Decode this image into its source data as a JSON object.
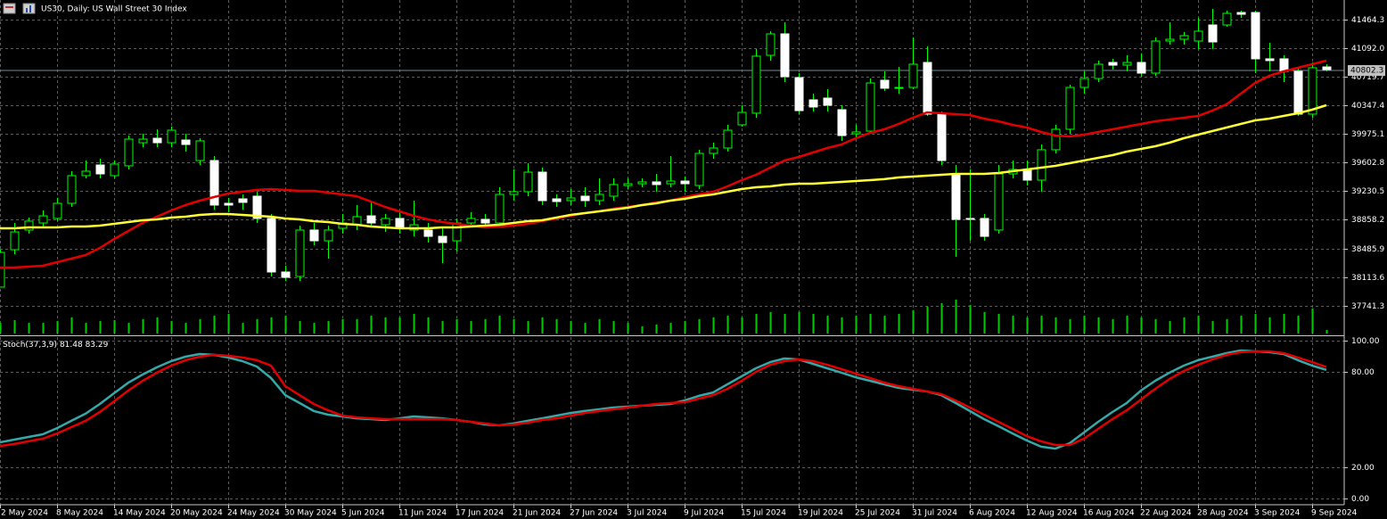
{
  "toolbar": {
    "title": "US30, Daily:  US Wall Street 30 Index"
  },
  "chart_data": [
    {
      "type": "candlestick",
      "categories": [
        "2 May 2024",
        null,
        null,
        null,
        "8 May 2024",
        null,
        null,
        null,
        "14 May 2024",
        null,
        null,
        null,
        "20 May 2024",
        null,
        null,
        null,
        "24 May 2024",
        null,
        null,
        null,
        "30 May 2024",
        null,
        null,
        null,
        "5 Jun 2024",
        null,
        null,
        null,
        "11 Jun 2024",
        null,
        null,
        null,
        "17 Jun 2024",
        null,
        null,
        null,
        "21 Jun 2024",
        null,
        null,
        null,
        "27 Jun 2024",
        null,
        null,
        null,
        "3 Jul 2024",
        null,
        null,
        null,
        "9 Jul 2024",
        null,
        null,
        null,
        "15 Jul 2024",
        null,
        null,
        null,
        "19 Jul 2024",
        null,
        null,
        null,
        "25 Jul 2024",
        null,
        null,
        null,
        "31 Jul 2024",
        null,
        null,
        null,
        "6 Aug 2024",
        null,
        null,
        null,
        "12 Aug 2024",
        null,
        null,
        null,
        "16 Aug 2024",
        null,
        null,
        null,
        "22 Aug 2024",
        null,
        null,
        null,
        "28 Aug 2024",
        null,
        null,
        null,
        "3 Sep 2024",
        null,
        null,
        null,
        "9 Sep 2024",
        null
      ],
      "open": [
        37982,
        38469,
        38725,
        38817,
        38876,
        39073,
        39433,
        39572,
        39433,
        39561,
        39862,
        39920,
        39862,
        39897,
        39630,
        39630,
        39073,
        39131,
        39166,
        38876,
        38179,
        38121,
        38725,
        38585,
        38748,
        38794,
        38910,
        38794,
        38876,
        38725,
        38725,
        38643,
        38585,
        38817,
        38864,
        38817,
        39189,
        39224,
        39479,
        39131,
        39108,
        39166,
        39108,
        39166,
        39305,
        39328,
        39352,
        39328,
        39363,
        39305,
        39723,
        39793,
        40095,
        40246,
        41000,
        41279,
        40710,
        40420,
        40443,
        40292,
        39978,
        40013,
        40675,
        40571,
        40582,
        40907,
        40234,
        39444,
        38876,
        38876,
        38725,
        39456,
        39514,
        39375,
        39770,
        40037,
        40582,
        40698,
        40907,
        40872,
        40907,
        40768,
        41186,
        41209,
        41186,
        41395,
        41395,
        41557,
        41557,
        40954,
        40954,
        40791,
        40234,
        40849
      ],
      "high": [
        38469,
        38817,
        38887,
        38980,
        39143,
        39491,
        39630,
        39653,
        39630,
        39955,
        39978,
        40037,
        40071,
        39978,
        39920,
        39688,
        39143,
        39189,
        39224,
        38934,
        38260,
        38783,
        38817,
        38783,
        38934,
        39050,
        39108,
        38934,
        38957,
        39108,
        38817,
        38759,
        38876,
        38957,
        38934,
        39282,
        39514,
        39595,
        39537,
        39189,
        39259,
        39282,
        39398,
        39398,
        39398,
        39398,
        39456,
        39688,
        39421,
        39770,
        39862,
        40095,
        40350,
        41081,
        41314,
        41430,
        40768,
        40501,
        40559,
        40350,
        40095,
        40698,
        40791,
        40849,
        41232,
        41116,
        40269,
        39572,
        39514,
        38934,
        39572,
        39630,
        39630,
        39839,
        40095,
        40617,
        40791,
        40931,
        40954,
        41000,
        41023,
        41232,
        41430,
        41302,
        41488,
        41604,
        41581,
        41581,
        41581,
        41163,
        41000,
        40849,
        40907,
        40884
      ],
      "low": [
        37982,
        38411,
        38678,
        38759,
        38841,
        39026,
        39398,
        39398,
        39398,
        39514,
        39804,
        39804,
        39804,
        39746,
        39572,
        38992,
        38957,
        38992,
        38817,
        38121,
        38063,
        38063,
        38527,
        38353,
        38678,
        38725,
        38759,
        38701,
        38678,
        38643,
        38562,
        38295,
        38446,
        38759,
        38759,
        38794,
        39108,
        39166,
        39050,
        39026,
        39050,
        39026,
        39050,
        39108,
        39259,
        39282,
        39224,
        39282,
        39224,
        39259,
        39653,
        39746,
        40071,
        40187,
        40931,
        40652,
        40234,
        40269,
        40269,
        39886,
        39920,
        39978,
        40536,
        40501,
        40559,
        40211,
        39572,
        38376,
        38585,
        38585,
        38678,
        39398,
        39305,
        39224,
        39723,
        39978,
        40501,
        40652,
        40814,
        40791,
        40722,
        40733,
        41139,
        41139,
        41081,
        41081,
        41372,
        41488,
        40768,
        40791,
        40652,
        40211,
        40187,
        40791
      ],
      "close": [
        38434,
        38701,
        38841,
        38910,
        39073,
        39433,
        39491,
        39456,
        39584,
        39909,
        39909,
        39862,
        40025,
        39839,
        39886,
        39050,
        39050,
        39085,
        38876,
        38179,
        38109,
        38725,
        38585,
        38725,
        38817,
        38899,
        38817,
        38876,
        38759,
        38794,
        38643,
        38562,
        38817,
        38876,
        38817,
        39189,
        39224,
        39479,
        39108,
        39096,
        39143,
        39108,
        39189,
        39317,
        39328,
        39352,
        39317,
        39363,
        39328,
        39723,
        39793,
        40025,
        40257,
        40989,
        41279,
        40722,
        40280,
        40327,
        40350,
        39955,
        40002,
        40640,
        40571,
        40582,
        40884,
        40234,
        39630,
        38864,
        38864,
        38643,
        39456,
        39514,
        39375,
        39770,
        40037,
        40582,
        40698,
        40884,
        40872,
        40907,
        40768,
        41186,
        41209,
        41256,
        41314,
        41174,
        41546,
        41534,
        40954,
        40931,
        40791,
        40234,
        40838,
        40814
      ],
      "bull_color": "#000000",
      "bear_color": "#ffffff",
      "wick_color": "#00ff00",
      "lines": [
        {
          "color": "#e00000",
          "values": [
            38237,
            38237,
            38249,
            38260,
            38307,
            38353,
            38400,
            38492,
            38609,
            38713,
            38817,
            38899,
            38980,
            39050,
            39108,
            39154,
            39201,
            39224,
            39247,
            39259,
            39247,
            39236,
            39236,
            39212,
            39189,
            39166,
            39096,
            39026,
            38968,
            38910,
            38864,
            38829,
            38806,
            38783,
            38759,
            38771,
            38783,
            38806,
            38841,
            38876,
            38910,
            38945,
            38968,
            39003,
            39026,
            39050,
            39085,
            39108,
            39154,
            39189,
            39224,
            39293,
            39375,
            39444,
            39537,
            39630,
            39677,
            39735,
            39793,
            39839,
            39920,
            39990,
            40037,
            40106,
            40187,
            40257,
            40246,
            40234,
            40222,
            40176,
            40141,
            40095,
            40060,
            40002,
            39955,
            39944,
            39967,
            40002,
            40037,
            40071,
            40106,
            40141,
            40164,
            40187,
            40211,
            40280,
            40362,
            40501,
            40640,
            40733,
            40791,
            40838,
            40884,
            40931
          ]
        },
        {
          "color": "#ffff33",
          "values": [
            38748,
            38748,
            38759,
            38759,
            38759,
            38771,
            38771,
            38783,
            38806,
            38829,
            38852,
            38864,
            38887,
            38899,
            38922,
            38934,
            38934,
            38922,
            38910,
            38899,
            38876,
            38864,
            38841,
            38829,
            38806,
            38794,
            38771,
            38759,
            38748,
            38748,
            38748,
            38759,
            38759,
            38771,
            38783,
            38794,
            38817,
            38841,
            38852,
            38887,
            38922,
            38945,
            38968,
            38992,
            39015,
            39050,
            39073,
            39108,
            39131,
            39166,
            39189,
            39224,
            39259,
            39282,
            39294,
            39317,
            39328,
            39328,
            39340,
            39352,
            39363,
            39375,
            39387,
            39410,
            39421,
            39433,
            39444,
            39456,
            39456,
            39456,
            39468,
            39491,
            39514,
            39537,
            39561,
            39595,
            39630,
            39665,
            39700,
            39746,
            39781,
            39816,
            39862,
            39920,
            39967,
            40013,
            40060,
            40106,
            40153,
            40176,
            40211,
            40246,
            40292,
            40350
          ]
        }
      ],
      "volume": {
        "color": "#00c800",
        "values": [
          12,
          15,
          12,
          12,
          14,
          18,
          12,
          14,
          15,
          12,
          16,
          18,
          14,
          12,
          16,
          20,
          22,
          12,
          16,
          18,
          20,
          14,
          12,
          14,
          16,
          16,
          20,
          18,
          18,
          22,
          18,
          14,
          16,
          14,
          16,
          20,
          16,
          14,
          18,
          16,
          14,
          12,
          16,
          14,
          12,
          8,
          10,
          12,
          14,
          16,
          18,
          20,
          18,
          22,
          24,
          22,
          24,
          22,
          20,
          18,
          20,
          22,
          20,
          22,
          26,
          30,
          34,
          38,
          32,
          24,
          22,
          20,
          18,
          20,
          18,
          16,
          20,
          18,
          16,
          20,
          18,
          16,
          14,
          18,
          20,
          14,
          16,
          20,
          22,
          18,
          22,
          20,
          28,
          4
        ]
      },
      "current_price": 40802.3,
      "ylim": [
        37366.3,
        41720
      ],
      "yticks": [
        41464.3,
        {
          "value": 41092,
          "label": "41092.0"
        },
        40719.7,
        40347.4,
        39975.1,
        39602.8,
        39230.5,
        38858.2,
        38485.9,
        38113.6,
        37741.3
      ],
      "grid": true
    },
    {
      "type": "line",
      "title": "Stoch(37,3,9)",
      "series": [
        {
          "color": "#37a8a8",
          "values": [
            35.6,
            37.3,
            39.0,
            40.7,
            44.6,
            49.2,
            53.7,
            59.9,
            66.7,
            73.4,
            78.5,
            83.1,
            87.0,
            89.8,
            91.5,
            91.0,
            89.3,
            87.0,
            83.6,
            76.3,
            65.5,
            60.5,
            55.4,
            53.1,
            52.0,
            50.8,
            50.3,
            49.7,
            50.8,
            52.0,
            51.4,
            50.8,
            49.7,
            48.6,
            46.9,
            46.3,
            47.5,
            49.2,
            50.8,
            52.5,
            54.2,
            55.4,
            56.5,
            57.6,
            58.2,
            58.8,
            59.3,
            59.9,
            62.1,
            65.0,
            67.2,
            72.3,
            77.4,
            82.5,
            86.4,
            88.7,
            88.1,
            85.3,
            82.5,
            79.7,
            76.8,
            74.6,
            72.3,
            70.1,
            68.9,
            67.8,
            65.5,
            60.5,
            55.4,
            50.3,
            45.8,
            41.2,
            36.7,
            32.8,
            31.6,
            35.0,
            41.8,
            48.6,
            54.8,
            60.5,
            68.4,
            74.6,
            79.7,
            84.2,
            87.6,
            89.8,
            92.1,
            93.8,
            93.2,
            92.7,
            91.5,
            87.6,
            84.2,
            81.48
          ]
        },
        {
          "color": "#e00000",
          "values": [
            33.3,
            34.5,
            36.2,
            37.9,
            41.2,
            45.2,
            49.2,
            54.8,
            61.6,
            68.4,
            74.6,
            79.7,
            84.2,
            87.6,
            89.8,
            91.0,
            90.4,
            89.3,
            87.6,
            84.2,
            71.2,
            65.5,
            59.9,
            55.9,
            52.5,
            51.4,
            50.8,
            50.3,
            50.3,
            50.3,
            50.3,
            50.3,
            49.7,
            48.6,
            47.5,
            46.3,
            46.9,
            48.0,
            49.7,
            50.8,
            52.5,
            54.2,
            55.4,
            56.5,
            57.6,
            58.8,
            59.9,
            60.5,
            61.0,
            63.3,
            65.5,
            69.5,
            74.6,
            80.2,
            84.7,
            87.0,
            88.1,
            87.0,
            84.7,
            81.9,
            79.1,
            76.3,
            73.4,
            71.2,
            69.5,
            67.8,
            66.1,
            62.1,
            57.6,
            53.1,
            48.6,
            44.1,
            39.5,
            36.2,
            33.9,
            33.9,
            37.9,
            44.1,
            50.3,
            55.9,
            62.7,
            69.5,
            75.7,
            80.8,
            84.7,
            88.1,
            91.0,
            92.7,
            93.2,
            93.2,
            92.1,
            89.3,
            86.4,
            83.29
          ]
        }
      ],
      "ylim": [
        -3.39,
        102.82
      ],
      "yticks": [
        {
          "value": 100,
          "label": "100.00"
        },
        {
          "value": 80,
          "label": "80.00"
        },
        {
          "value": 20,
          "label": "20.00"
        },
        {
          "value": 0,
          "label": "0.00"
        }
      ],
      "grid": true
    }
  ]
}
